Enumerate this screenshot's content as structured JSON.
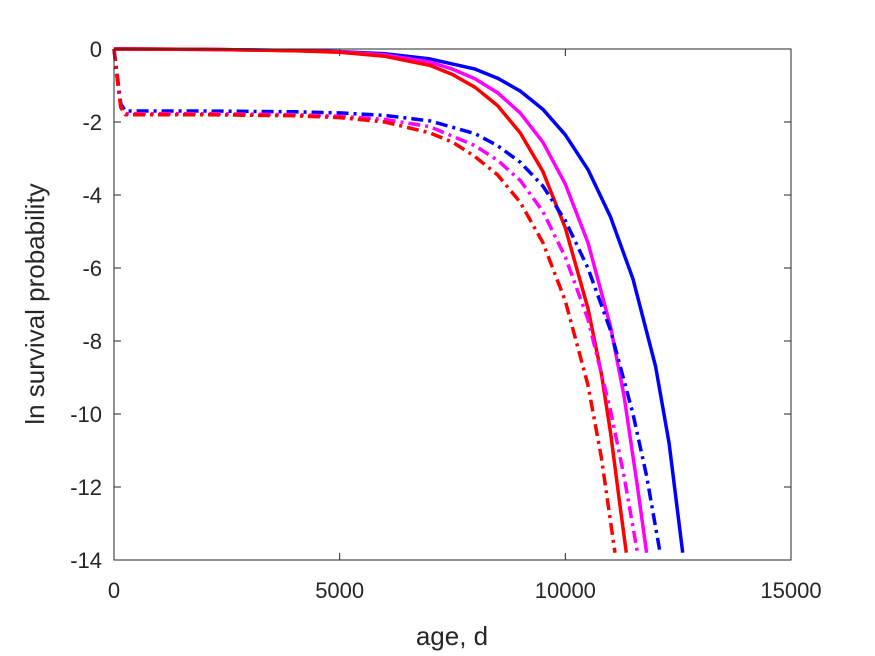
{
  "chart_data": {
    "type": "line",
    "title": "",
    "xlabel": "age, d",
    "ylabel": "ln survival probability",
    "xlim": [
      0,
      15000
    ],
    "ylim": [
      -14,
      0
    ],
    "xticks": [
      0,
      5000,
      10000,
      15000
    ],
    "xtick_labels": [
      "0",
      "5000",
      "10000",
      "15000"
    ],
    "yticks": [
      0,
      -2,
      -4,
      -6,
      -8,
      -10,
      -12,
      -14
    ],
    "ytick_labels": [
      "0",
      "-2",
      "-4",
      "-6",
      "-8",
      "-10",
      "-12",
      "-14"
    ],
    "grid": false,
    "legend": "none",
    "series": [
      {
        "color": "#0000FF",
        "style": "solid",
        "x": [
          0,
          2000,
          4000,
          5000,
          6000,
          7000,
          8000,
          8500,
          9000,
          9500,
          10000,
          10500,
          11000,
          11500,
          12000,
          12300,
          12600
        ],
        "y": [
          0,
          -0.01,
          -0.04,
          -0.07,
          -0.13,
          -0.27,
          -0.55,
          -0.8,
          -1.15,
          -1.65,
          -2.35,
          -3.3,
          -4.6,
          -6.3,
          -8.7,
          -10.8,
          -13.8
        ]
      },
      {
        "color": "#FF00FF",
        "style": "solid",
        "x": [
          0,
          2000,
          4000,
          5000,
          6000,
          7000,
          7500,
          8000,
          8500,
          9000,
          9500,
          10000,
          10500,
          11000,
          11300,
          11600,
          11800
        ],
        "y": [
          0,
          -0.01,
          -0.04,
          -0.08,
          -0.16,
          -0.36,
          -0.55,
          -0.82,
          -1.2,
          -1.75,
          -2.55,
          -3.7,
          -5.3,
          -7.6,
          -9.5,
          -12.0,
          -13.8
        ]
      },
      {
        "color": "#FF0000",
        "style": "solid",
        "x": [
          0,
          2000,
          4000,
          5000,
          6000,
          7000,
          7500,
          8000,
          8500,
          9000,
          9500,
          10000,
          10500,
          10800,
          11000,
          11200,
          11350
        ],
        "y": [
          0,
          -0.01,
          -0.05,
          -0.09,
          -0.2,
          -0.45,
          -0.7,
          -1.05,
          -1.55,
          -2.3,
          -3.35,
          -4.9,
          -7.1,
          -8.9,
          -10.5,
          -12.4,
          -13.8
        ]
      },
      {
        "color": "#0000FF",
        "style": "dashdot",
        "x": [
          0,
          80,
          150,
          250,
          2000,
          4000,
          5000,
          6000,
          7000,
          8000,
          8500,
          9000,
          9500,
          10000,
          10500,
          11000,
          11500,
          11800,
          12100
        ],
        "y": [
          0,
          -0.8,
          -1.5,
          -1.7,
          -1.7,
          -1.72,
          -1.75,
          -1.82,
          -1.97,
          -2.32,
          -2.65,
          -3.1,
          -3.75,
          -4.7,
          -6.0,
          -7.7,
          -10.0,
          -11.7,
          -13.8
        ]
      },
      {
        "color": "#FF00FF",
        "style": "dashdot",
        "x": [
          0,
          80,
          150,
          250,
          2000,
          4000,
          5000,
          6000,
          7000,
          8000,
          8500,
          9000,
          9500,
          10000,
          10500,
          11000,
          11300,
          11600
        ],
        "y": [
          0,
          -0.9,
          -1.6,
          -1.77,
          -1.77,
          -1.8,
          -1.84,
          -1.93,
          -2.13,
          -2.65,
          -3.05,
          -3.6,
          -4.45,
          -5.7,
          -7.4,
          -9.9,
          -11.7,
          -13.8
        ]
      },
      {
        "color": "#FF0000",
        "style": "dashdot",
        "x": [
          0,
          80,
          150,
          250,
          2000,
          4000,
          5000,
          6000,
          7000,
          7500,
          8000,
          8500,
          9000,
          9500,
          10000,
          10500,
          10800,
          11100
        ],
        "y": [
          0,
          -0.9,
          -1.6,
          -1.8,
          -1.8,
          -1.83,
          -1.88,
          -2.0,
          -2.3,
          -2.55,
          -2.95,
          -3.45,
          -4.2,
          -5.3,
          -6.9,
          -9.2,
          -11.2,
          -13.8
        ]
      }
    ]
  }
}
